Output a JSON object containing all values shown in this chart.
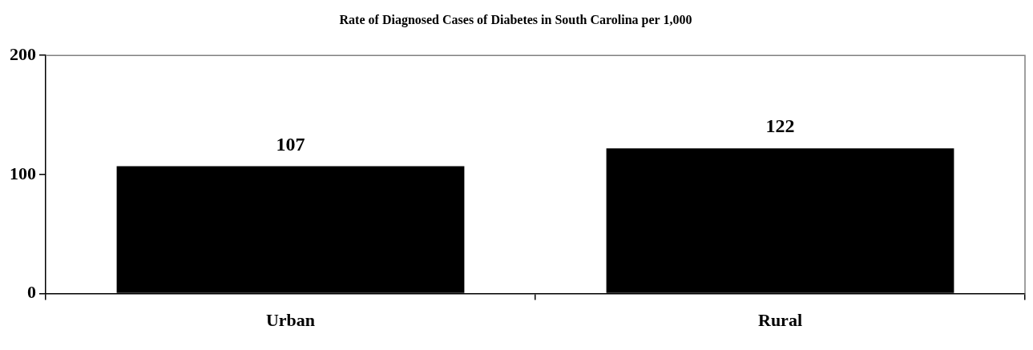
{
  "chart_data": {
    "type": "bar",
    "title": "Rate of Diagnosed Cases of Diabetes in South Carolina per 1,000",
    "categories": [
      "Urban",
      "Rural"
    ],
    "values": [
      107,
      122
    ],
    "color": "#000000",
    "ylim": [
      0,
      200
    ],
    "yticks": [
      0,
      100,
      200
    ],
    "grid": false,
    "legend": false,
    "data_labels": true
  }
}
